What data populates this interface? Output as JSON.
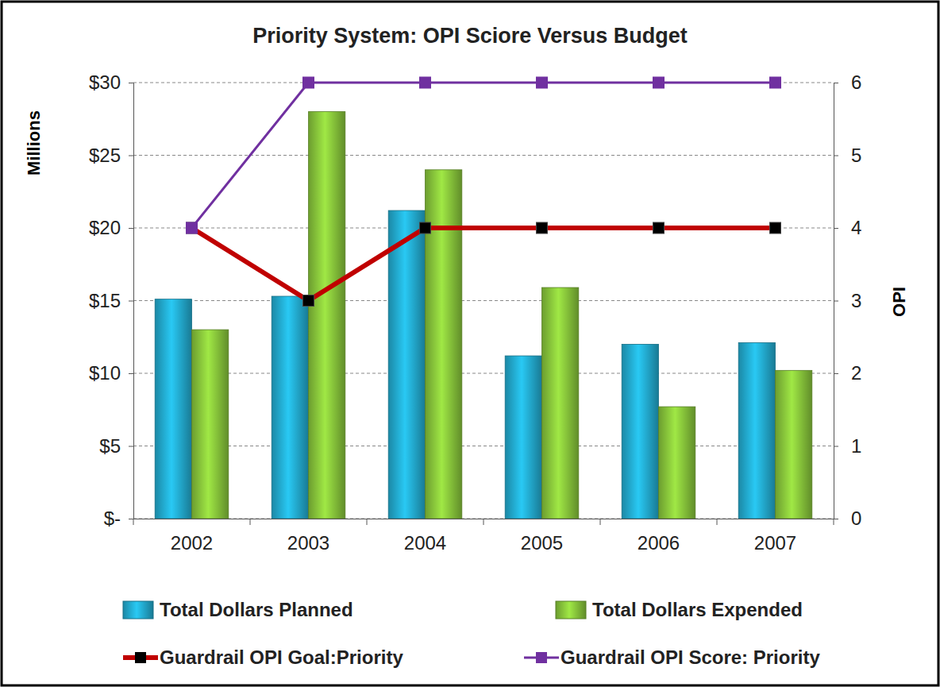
{
  "chart_data": {
    "type": "bar",
    "title": "Priority System: OPI Sciore Versus Budget",
    "y_label": "Millions",
    "y2_label": "OPI",
    "categories": [
      "2002",
      "2003",
      "2004",
      "2005",
      "2006",
      "2007"
    ],
    "series": [
      {
        "name": "Total Dollars Planned",
        "type": "bar",
        "color": "#22a8cc",
        "values": [
          15.1,
          15.3,
          21.2,
          11.2,
          12.0,
          12.1
        ]
      },
      {
        "name": "Total Dollars Expended",
        "type": "bar",
        "color": "#86c23a",
        "values": [
          13.0,
          28.0,
          24.0,
          15.9,
          7.7,
          10.2
        ]
      },
      {
        "name": "Guardrail OPI Goal:Priority",
        "type": "line",
        "axis": "y2",
        "color": "#c00000",
        "marker": "square",
        "values": [
          4,
          3,
          4,
          4,
          4,
          4
        ]
      },
      {
        "name": "Guardrail OPI Score: Priority",
        "type": "line",
        "axis": "y2",
        "color": "#7030a0",
        "marker": "square",
        "values": [
          4,
          6,
          6,
          6,
          6,
          6
        ]
      }
    ],
    "ylim": [
      0,
      30
    ],
    "yticks": [
      {
        "value": 0,
        "label": "$-"
      },
      {
        "value": 5,
        "label": "$5"
      },
      {
        "value": 10,
        "label": "$10"
      },
      {
        "value": 15,
        "label": "$15"
      },
      {
        "value": 20,
        "label": "$20"
      },
      {
        "value": 25,
        "label": "$25"
      },
      {
        "value": 30,
        "label": "$30"
      }
    ],
    "y2lim": [
      0,
      6
    ],
    "y2ticks": [
      0,
      1,
      2,
      3,
      4,
      5,
      6
    ],
    "grid": true,
    "legend": "bottom"
  }
}
